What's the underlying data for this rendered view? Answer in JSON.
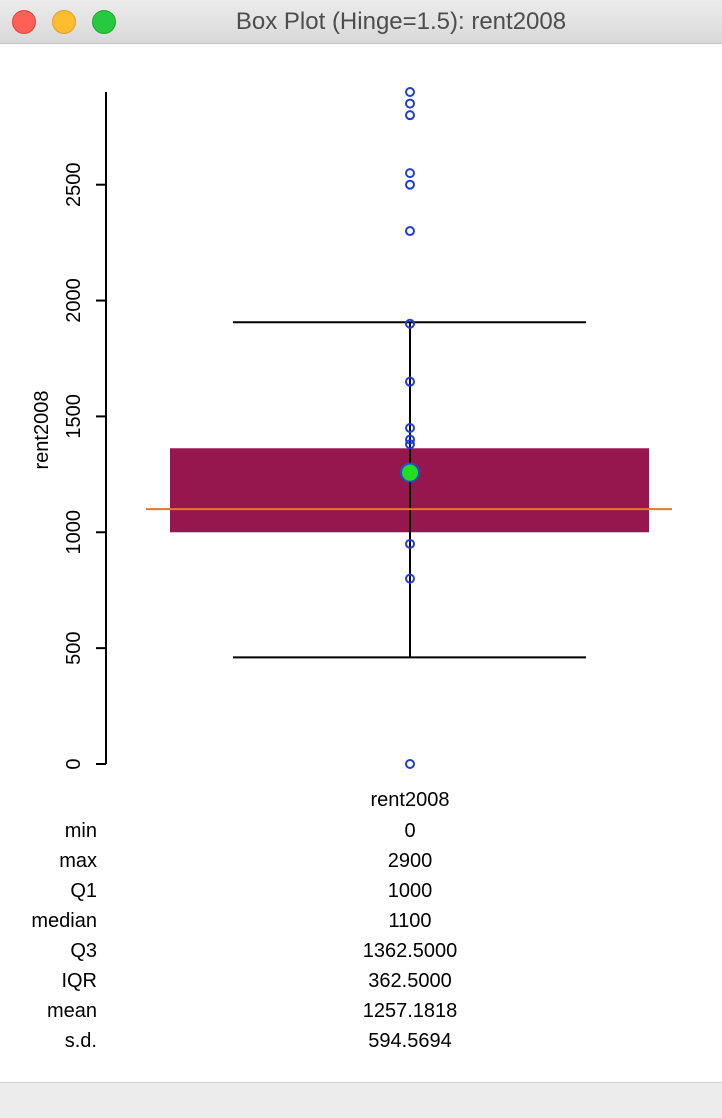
{
  "window": {
    "title": "Box Plot (Hinge=1.5): rent2008"
  },
  "chart_data": {
    "type": "boxplot",
    "ylabel": "rent2008",
    "xlabel": "rent2008",
    "ylim": [
      0,
      2900
    ],
    "yticks": [
      0,
      500,
      1000,
      1500,
      2000,
      2500
    ],
    "box": {
      "q1": 1000,
      "median": 1100,
      "q3": 1362.5,
      "mean": 1257.1818
    },
    "whiskers": {
      "lower": 460,
      "upper": 1906.25
    },
    "points": [
      0,
      800,
      950,
      1380,
      1400,
      1450,
      1650,
      1900,
      2300,
      2500,
      2550,
      2800,
      2850,
      2900
    ],
    "colors": {
      "box": "#95174e",
      "median": "#e87722",
      "mean": "#22dd22",
      "mean_edge": "#1f4fcf",
      "points": "#1f3fd6",
      "axis": "#000000"
    }
  },
  "stats": [
    {
      "label": "min",
      "value": "0"
    },
    {
      "label": "max",
      "value": "2900"
    },
    {
      "label": "Q1",
      "value": "1000"
    },
    {
      "label": "median",
      "value": "1100"
    },
    {
      "label": "Q3",
      "value": "1362.5000"
    },
    {
      "label": "IQR",
      "value": "362.5000"
    },
    {
      "label": "mean",
      "value": "1257.1818"
    },
    {
      "label": "s.d.",
      "value": "594.5694"
    }
  ]
}
